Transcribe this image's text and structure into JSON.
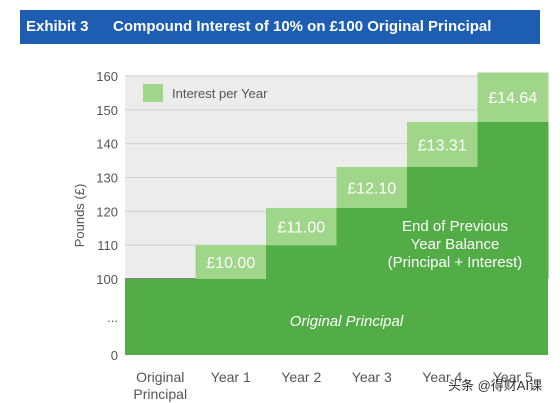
{
  "header": {
    "exhibit": "Exhibit 3",
    "title": "Compound Interest of 10% on £100 Original Principal"
  },
  "colors": {
    "header": "#1e5eb2",
    "interest": "#9fd68a",
    "balance": "#52ad47",
    "principal": "#52ad47",
    "grid": "#cfcfcf",
    "plot_bg": "#ececec"
  },
  "chart_data": {
    "type": "bar",
    "stacked": true,
    "title": "Compound Interest of 10% on £100 Original Principal",
    "ylabel": "Pounds (£)",
    "ylim": [
      0,
      160
    ],
    "yticks": [
      "0",
      "...",
      "100",
      "110",
      "120",
      "130",
      "140",
      "150",
      "160"
    ],
    "categories": [
      [
        "Original",
        "Principal"
      ],
      [
        "Year 1"
      ],
      [
        "Year 2"
      ],
      [
        "Year 3"
      ],
      [
        "Year 4"
      ],
      [
        "Year 5"
      ]
    ],
    "series": [
      {
        "name": "Interest per Year",
        "values": [
          0,
          10.0,
          11.0,
          12.1,
          13.31,
          14.64
        ]
      }
    ],
    "base_values": [
      100,
      100,
      110,
      121,
      133.1,
      146.41
    ],
    "data_labels": [
      "",
      "£10.00",
      "£11.00",
      "£12.10",
      "£13.31",
      "£14.64"
    ],
    "legend": {
      "position": "top-left",
      "label": "Interest per Year"
    },
    "annotations": {
      "balance": [
        "End of Previous",
        "Year Balance",
        "(Principal + Interest)"
      ],
      "principal": "Original Principal"
    },
    "grid": true
  },
  "watermark": "头条 @得财AI课"
}
